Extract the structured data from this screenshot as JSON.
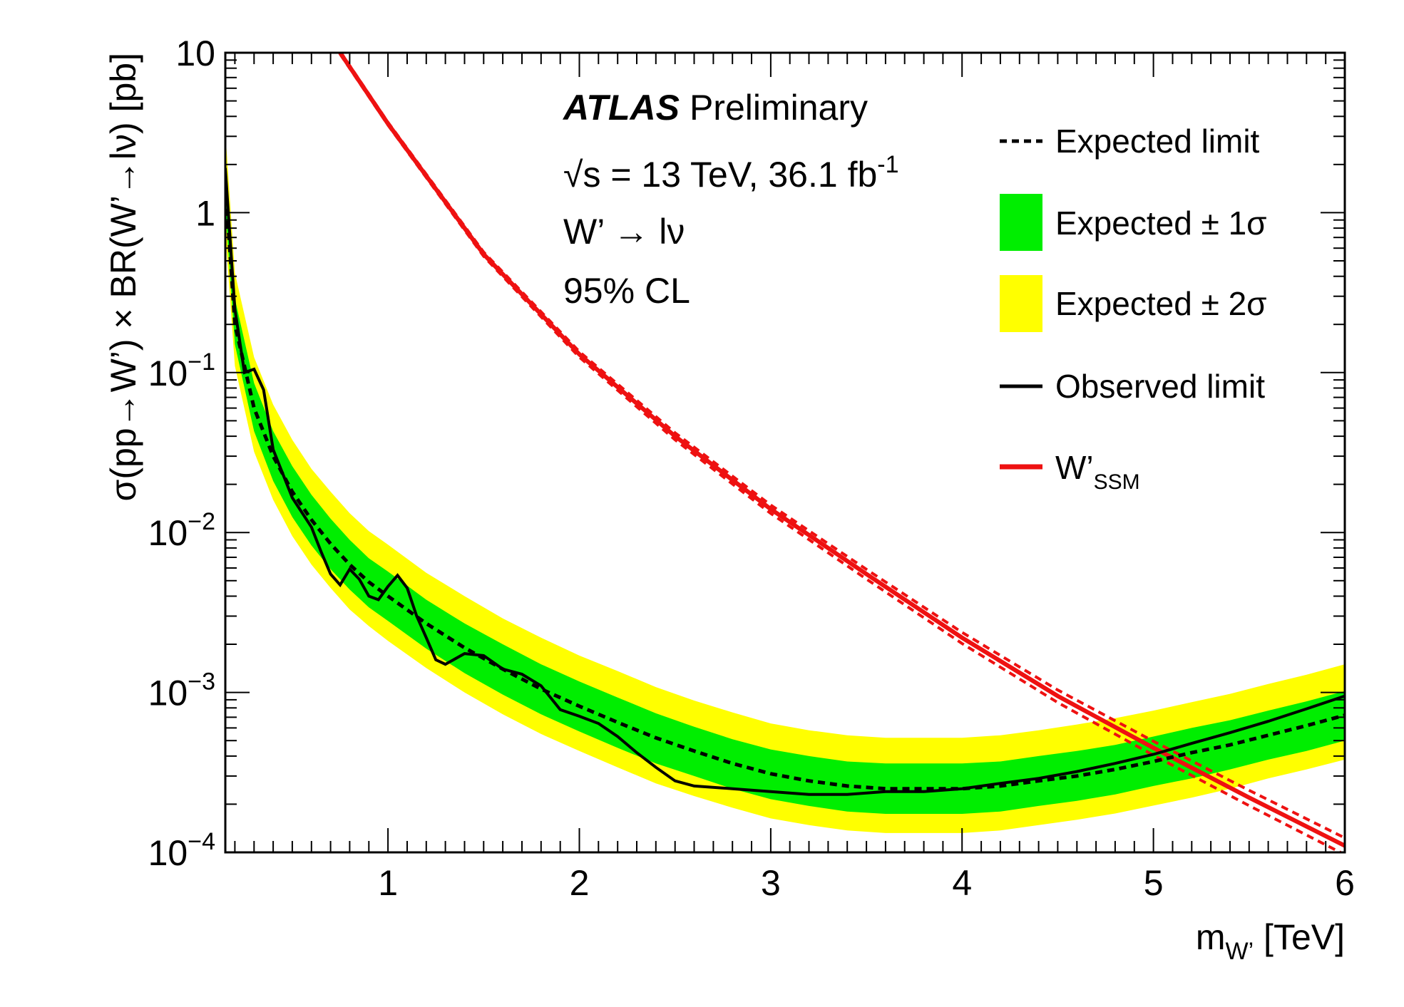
{
  "chart_data": {
    "type": "line",
    "y_scale": "log",
    "xlim": [
      0.15,
      6.0
    ],
    "ylim": [
      0.0001,
      10
    ],
    "x_ticks": [
      {
        "value": 1,
        "label": "1"
      },
      {
        "value": 2,
        "label": "2"
      },
      {
        "value": 3,
        "label": "3"
      },
      {
        "value": 4,
        "label": "4"
      },
      {
        "value": 5,
        "label": "5"
      },
      {
        "value": 6,
        "label": "6"
      }
    ],
    "y_ticks": [
      {
        "value": 10,
        "base": "10",
        "exp": ""
      },
      {
        "value": 1,
        "base": "1",
        "exp": ""
      },
      {
        "value": 0.1,
        "base": "10",
        "exp": "−1"
      },
      {
        "value": 0.01,
        "base": "10",
        "exp": "−2"
      },
      {
        "value": 0.001,
        "base": "10",
        "exp": "−3"
      },
      {
        "value": 0.0001,
        "base": "10",
        "exp": "−4"
      }
    ],
    "xlabel": {
      "main": "m",
      "sub": "W’",
      "unit": " [TeV]"
    },
    "ylabel": "σ(pp→W’) × BR(W’→lν) [pb]",
    "annotations": {
      "experiment": "ATLAS",
      "status": "Preliminary",
      "energy_prefix": "√s = 13 TeV, 36.1 fb",
      "energy_exp": "-1",
      "channel": "W’ → lν",
      "cl": "95% CL"
    },
    "legend": [
      {
        "key": "expected",
        "label": "Expected limit",
        "style": "dashed"
      },
      {
        "key": "band1",
        "label": "Expected ± 1σ",
        "style": "fill-green"
      },
      {
        "key": "band2",
        "label": "Expected ± 2σ",
        "style": "fill-yellow"
      },
      {
        "key": "observed",
        "label": "Observed limit",
        "style": "solid"
      },
      {
        "key": "ssm",
        "label": "W’",
        "sub": "SSM",
        "style": "red"
      }
    ],
    "colors": {
      "band1": "#00ee00",
      "band2": "#ffff00",
      "expected": "#000000",
      "observed": "#000000",
      "ssm": "#ee1111"
    },
    "x": [
      0.15,
      0.2,
      0.3,
      0.4,
      0.5,
      0.6,
      0.7,
      0.8,
      0.9,
      1.0,
      1.2,
      1.4,
      1.6,
      1.8,
      2.0,
      2.2,
      2.4,
      2.6,
      2.8,
      3.0,
      3.2,
      3.4,
      3.6,
      3.8,
      4.0,
      4.2,
      4.4,
      4.6,
      4.8,
      5.0,
      5.2,
      5.4,
      5.6,
      5.8,
      6.0
    ],
    "expected": [
      1.5,
      0.2,
      0.06,
      0.03,
      0.018,
      0.012,
      0.0085,
      0.0063,
      0.0049,
      0.004,
      0.0027,
      0.0019,
      0.0014,
      0.00105,
      0.00082,
      0.00065,
      0.00052,
      0.00043,
      0.00036,
      0.00031,
      0.00028,
      0.00026,
      0.00025,
      0.00025,
      0.00025,
      0.00026,
      0.00028,
      0.0003,
      0.00033,
      0.00037,
      0.00042,
      0.00047,
      0.00054,
      0.00062,
      0.00072
    ],
    "band1_low": [
      1.05,
      0.15,
      0.043,
      0.021,
      0.0125,
      0.0083,
      0.0059,
      0.0044,
      0.0034,
      0.0028,
      0.00188,
      0.00132,
      0.00097,
      0.00073,
      0.00057,
      0.00045,
      0.00036,
      0.0003,
      0.00025,
      0.000215,
      0.000195,
      0.00018,
      0.000174,
      0.000174,
      0.000174,
      0.00018,
      0.000195,
      0.00021,
      0.00023,
      0.00026,
      0.00029,
      0.00033,
      0.00038,
      0.00043,
      0.0005
    ],
    "band1_high": [
      2.1,
      0.29,
      0.086,
      0.043,
      0.026,
      0.0172,
      0.0122,
      0.009,
      0.0069,
      0.0057,
      0.0038,
      0.0027,
      0.002,
      0.0015,
      0.00117,
      0.00093,
      0.00074,
      0.00061,
      0.00051,
      0.00044,
      0.0004,
      0.00037,
      0.00036,
      0.00036,
      0.00036,
      0.00037,
      0.0004,
      0.00043,
      0.00047,
      0.00053,
      0.0006,
      0.00067,
      0.00077,
      0.00088,
      0.00102
    ],
    "band2_low": [
      0.75,
      0.11,
      0.032,
      0.016,
      0.0095,
      0.0063,
      0.0045,
      0.0033,
      0.0026,
      0.0021,
      0.00142,
      0.001,
      0.00073,
      0.00055,
      0.00043,
      0.00034,
      0.00027,
      0.000225,
      0.00019,
      0.000163,
      0.000148,
      0.000137,
      0.000132,
      0.000132,
      0.000132,
      0.000137,
      0.000148,
      0.00016,
      0.000175,
      0.000196,
      0.00022,
      0.00025,
      0.00029,
      0.00033,
      0.00038
    ],
    "band2_high": [
      3.2,
      0.42,
      0.125,
      0.063,
      0.038,
      0.025,
      0.018,
      0.0132,
      0.0102,
      0.0084,
      0.0056,
      0.004,
      0.0029,
      0.0022,
      0.0017,
      0.00136,
      0.00108,
      0.00089,
      0.00075,
      0.00064,
      0.00058,
      0.00054,
      0.00052,
      0.00052,
      0.00052,
      0.00054,
      0.00058,
      0.00063,
      0.00069,
      0.00077,
      0.00087,
      0.00098,
      0.00113,
      0.00129,
      0.0015
    ],
    "observed": {
      "x": [
        0.15,
        0.2,
        0.25,
        0.3,
        0.35,
        0.4,
        0.5,
        0.6,
        0.65,
        0.7,
        0.75,
        0.8,
        0.85,
        0.9,
        0.95,
        1.0,
        1.05,
        1.1,
        1.15,
        1.2,
        1.25,
        1.3,
        1.4,
        1.5,
        1.6,
        1.7,
        1.8,
        1.9,
        2.0,
        2.1,
        2.2,
        2.3,
        2.4,
        2.5,
        2.6,
        2.8,
        3.0,
        3.2,
        3.4,
        3.6,
        3.8,
        4.0,
        4.2,
        4.4,
        4.6,
        4.8,
        5.0,
        5.2,
        5.4,
        5.6,
        5.8,
        6.0
      ],
      "y": [
        1.9,
        0.25,
        0.1,
        0.105,
        0.078,
        0.033,
        0.0165,
        0.0108,
        0.0076,
        0.0055,
        0.0047,
        0.0059,
        0.0051,
        0.004,
        0.0038,
        0.0046,
        0.0054,
        0.0045,
        0.003,
        0.0022,
        0.0016,
        0.0015,
        0.00175,
        0.0017,
        0.0014,
        0.0013,
        0.0011,
        0.00078,
        0.00071,
        0.00064,
        0.00053,
        0.00042,
        0.00034,
        0.00028,
        0.00026,
        0.00025,
        0.00024,
        0.00023,
        0.00023,
        0.00024,
        0.00024,
        0.00025,
        0.00027,
        0.00029,
        0.00032,
        0.00036,
        0.00041,
        0.00048,
        0.00056,
        0.00066,
        0.00079,
        0.00095
      ]
    },
    "ssm": {
      "x": [
        0.75,
        1.0,
        1.5,
        2.0,
        2.5,
        3.0,
        3.5,
        4.0,
        4.5,
        5.0,
        5.5,
        6.0
      ],
      "y": [
        10,
        3.6,
        0.55,
        0.13,
        0.04,
        0.014,
        0.0055,
        0.0022,
        0.00095,
        0.00045,
        0.00022,
        0.00011
      ],
      "theory_uncertainty_frac": [
        0.02,
        0.02,
        0.03,
        0.04,
        0.05,
        0.06,
        0.07,
        0.08,
        0.09,
        0.1,
        0.11,
        0.12
      ]
    }
  }
}
